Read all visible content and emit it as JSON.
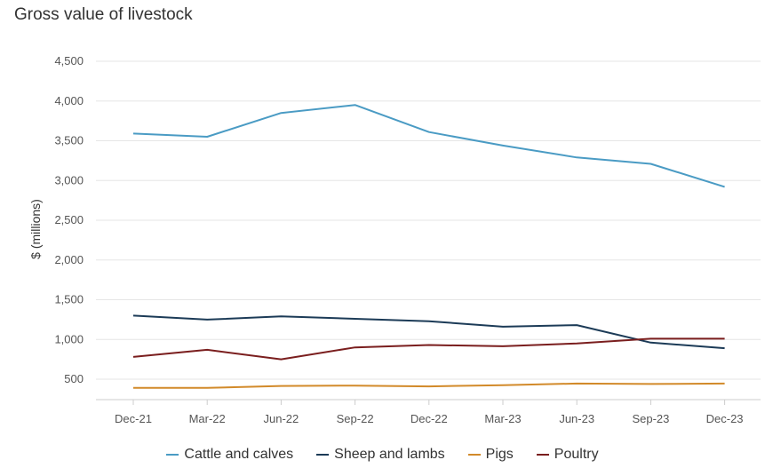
{
  "chart_data": {
    "type": "line",
    "title": "Gross value of livestock",
    "xlabel": "",
    "ylabel": "$ (millions)",
    "categories": [
      "Dec-21",
      "Mar-22",
      "Jun-22",
      "Sep-22",
      "Dec-22",
      "Mar-23",
      "Jun-23",
      "Sep-23",
      "Dec-23"
    ],
    "ylim": [
      400,
      4500
    ],
    "yticks": [
      500,
      1000,
      1500,
      2000,
      2500,
      3000,
      3500,
      4000,
      4500
    ],
    "ytick_labels": [
      "500",
      "1,000",
      "1,500",
      "2,000",
      "2,500",
      "3,000",
      "3,500",
      "4,000",
      "4,500"
    ],
    "grid": true,
    "legend_position": "bottom",
    "series": [
      {
        "name": "Cattle and calves",
        "color": "#4a9bc4",
        "values": [
          3590,
          3550,
          3850,
          3950,
          3610,
          3440,
          3290,
          3210,
          2920
        ]
      },
      {
        "name": "Sheep and lambs",
        "color": "#1c3b57",
        "values": [
          1300,
          1250,
          1290,
          1260,
          1230,
          1160,
          1180,
          960,
          890
        ]
      },
      {
        "name": "Pigs",
        "color": "#d28a2a",
        "values": [
          390,
          390,
          415,
          420,
          410,
          425,
          445,
          440,
          445
        ]
      },
      {
        "name": "Poultry",
        "color": "#7a1e1e",
        "values": [
          780,
          870,
          750,
          900,
          930,
          915,
          950,
          1010,
          1010
        ]
      }
    ]
  }
}
